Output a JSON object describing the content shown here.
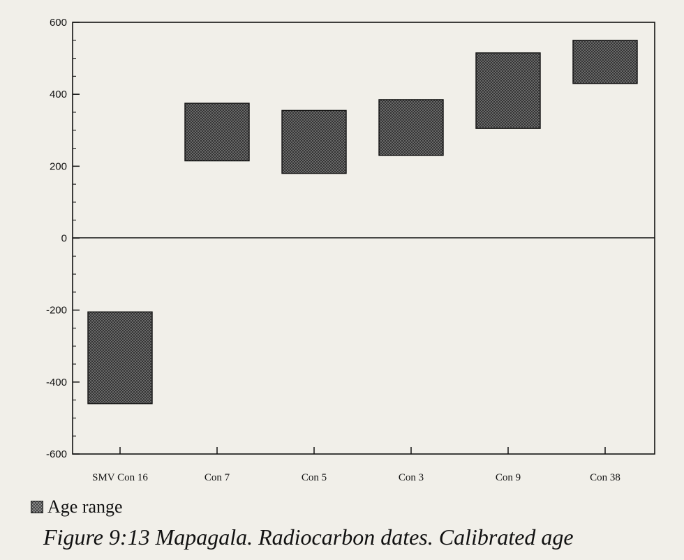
{
  "chart_data": {
    "type": "floating-bar",
    "categories": [
      "SMV Con 16",
      "Con 7",
      "Con 5",
      "Con 3",
      "Con 9",
      "Con 38"
    ],
    "series": [
      {
        "name": "Age range",
        "ranges": [
          [
            -460,
            -205
          ],
          [
            215,
            375
          ],
          [
            180,
            355
          ],
          [
            230,
            385
          ],
          [
            305,
            515
          ],
          [
            430,
            550
          ]
        ]
      }
    ],
    "ylim": [
      -600,
      600
    ],
    "yticks": [
      -600,
      -400,
      -200,
      0,
      200,
      400,
      600
    ],
    "grid": false,
    "legend_position": "bottom-left",
    "fill_color": "#3a3a3a"
  },
  "legend": {
    "label": "Age range"
  },
  "caption": "Figure 9:13 Mapagala. Radiocarbon dates. Calibrated age"
}
